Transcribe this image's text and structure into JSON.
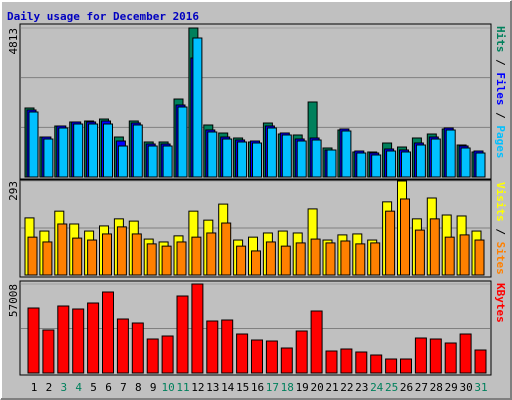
{
  "title": "Daily usage for December 2016",
  "chart_data": [
    {
      "type": "bar",
      "ylim": [
        0,
        4813
      ],
      "yticks": [
        4813
      ],
      "legend_separator": "/",
      "series": [
        {
          "name": "Hits",
          "color": "#00805c",
          "values": [
            2229,
            1292,
            1647,
            1777,
            1809,
            1873,
            1292,
            1809,
            1131,
            1131,
            2519,
            4813,
            1680,
            1421,
            1260,
            1131,
            1744,
            1389,
            1357,
            2423,
            937,
            1518,
            808,
            808,
            1098,
            969,
            1260,
            1389,
            1550,
            1034,
            808
          ]
        },
        {
          "name": "Files",
          "color": "#0000ff",
          "values": [
            2165,
            1292,
            1648,
            1777,
            1777,
            1809,
            1163,
            1745,
            1066,
            1066,
            2326,
            3844,
            1519,
            1292,
            1196,
            1163,
            1648,
            1422,
            1228,
            1260,
            872,
            1551,
            840,
            776,
            905,
            873,
            1099,
            1292,
            1583,
            1002,
            840
          ]
        },
        {
          "name": "Pages",
          "color": "#00c0ff",
          "values": [
            2100,
            1227,
            1583,
            1712,
            1712,
            1712,
            1001,
            1680,
            1001,
            1001,
            2261,
            4490,
            1454,
            1227,
            1131,
            1098,
            1583,
            1357,
            1163,
            1195,
            872,
            1486,
            775,
            711,
            840,
            808,
            1034,
            1227,
            1518,
            937,
            775
          ]
        }
      ]
    },
    {
      "type": "bar",
      "ylim": [
        0,
        293
      ],
      "yticks": [
        293
      ],
      "legend_separator": "/",
      "series": [
        {
          "name": "Visits",
          "color": "#ffff00",
          "values": [
            178,
            137,
            199,
            159,
            137,
            153,
            175,
            168,
            112,
            103,
            122,
            199,
            171,
            221,
            109,
            118,
            131,
            137,
            131,
            206,
            109,
            125,
            128,
            109,
            228,
            293,
            175,
            240,
            187,
            184,
            137
          ]
        },
        {
          "name": "Sites",
          "color": "#ff8000",
          "values": [
            118,
            103,
            159,
            115,
            109,
            128,
            150,
            128,
            97,
            90,
            103,
            118,
            131,
            162,
            90,
            75,
            103,
            90,
            100,
            112,
            100,
            106,
            97,
            100,
            199,
            237,
            140,
            175,
            118,
            125,
            109
          ]
        }
      ]
    },
    {
      "type": "bar",
      "ylim": [
        0,
        57008
      ],
      "yticks": [
        57008
      ],
      "categories": [
        "1",
        "2",
        "3",
        "4",
        "5",
        "6",
        "7",
        "8",
        "9",
        "10",
        "11",
        "12",
        "13",
        "14",
        "15",
        "16",
        "17",
        "18",
        "19",
        "20",
        "21",
        "22",
        "23",
        "24",
        "25",
        "26",
        "27",
        "28",
        "29",
        "30",
        "31"
      ],
      "category_colors": [
        "#000000",
        "#000000",
        "#00805c",
        "#00805c",
        "#000000",
        "#000000",
        "#000000",
        "#000000",
        "#000000",
        "#00805c",
        "#00805c",
        "#000000",
        "#000000",
        "#000000",
        "#000000",
        "#000000",
        "#00805c",
        "#00805c",
        "#000000",
        "#000000",
        "#000000",
        "#000000",
        "#000000",
        "#00805c",
        "#00805c",
        "#000000",
        "#000000",
        "#000000",
        "#000000",
        "#000000",
        "#00805c"
      ],
      "series": [
        {
          "name": "KBytes",
          "color": "#ff0000",
          "values": [
            41633,
            27542,
            42914,
            40992,
            44835,
            51881,
            34587,
            32025,
            21777,
            23699,
            49319,
            57008,
            33306,
            33947,
            24980,
            21137,
            20496,
            16013,
            26901,
            39711,
            14091,
            15372,
            13451,
            11529,
            8967,
            8967,
            22418,
            21777,
            19215,
            24980,
            14732
          ]
        }
      ]
    }
  ]
}
